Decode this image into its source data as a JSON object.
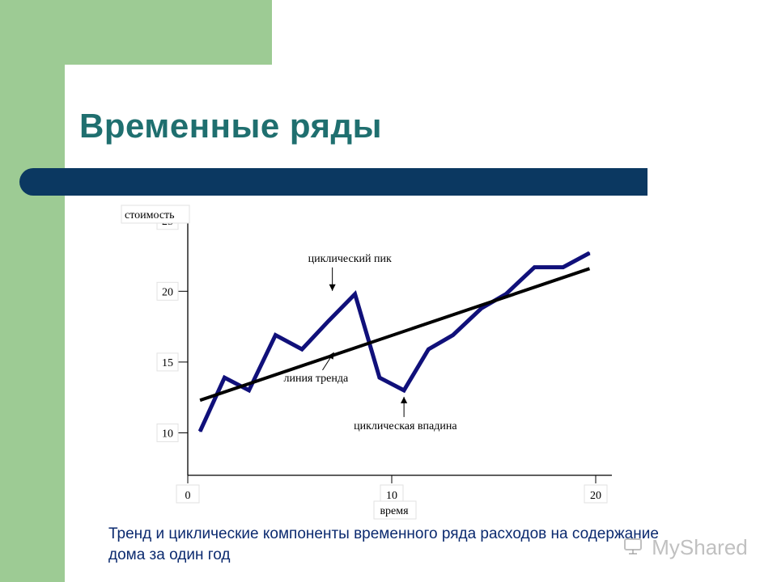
{
  "slide": {
    "title": "Временные ряды",
    "caption": "Тренд и циклические компоненты временного ряда расходов на содержание дома за один год",
    "watermark": "MyShared"
  },
  "colors": {
    "background_green": "#9dcb94",
    "title_text": "#1f6f6f",
    "title_bar": "#0b3861",
    "series_line": "#10107a",
    "trend_line": "#000000",
    "caption_text": "#0b2a6f"
  },
  "chart_data": {
    "type": "line",
    "title": "",
    "xlabel": "время",
    "ylabel": "стоимость",
    "xlim": [
      0,
      20
    ],
    "ylim": [
      7,
      25.5
    ],
    "x_ticks": [
      0,
      10,
      20
    ],
    "y_ticks": [
      10,
      15,
      20,
      25
    ],
    "grid": false,
    "series": [
      {
        "name": "",
        "x": [
          0.6,
          1.8,
          3.0,
          4.3,
          5.6,
          6.9,
          8.2,
          9.4,
          10.6,
          11.8,
          13.0,
          14.4,
          15.6,
          17.0,
          18.4,
          19.7
        ],
        "values": [
          10.1,
          13.9,
          13.0,
          16.9,
          15.9,
          17.9,
          19.8,
          13.9,
          13.0,
          15.9,
          16.9,
          18.8,
          19.8,
          21.7,
          21.7,
          22.7
        ]
      }
    ],
    "trend": {
      "x": [
        0.6,
        19.7
      ],
      "values": [
        12.3,
        21.6
      ]
    },
    "annotations": [
      {
        "text": "циклический пик",
        "x": 8.2,
        "y": 19.8
      },
      {
        "text": "линия тренда",
        "x": 7.4,
        "y": 15.8
      },
      {
        "text": "циклическая впадина",
        "x": 10.6,
        "y": 13.0
      }
    ]
  }
}
